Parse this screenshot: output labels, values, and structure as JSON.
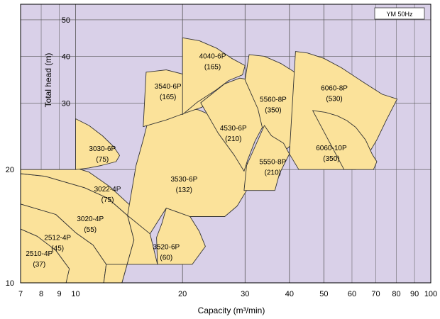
{
  "chart_data": {
    "type": "area",
    "legend": "YM 50Hz",
    "xlabel": "Capacity (m³/min)",
    "ylabel": "Total head (m)",
    "x_scale": "log",
    "y_scale": "log",
    "xlim": [
      7,
      100
    ],
    "ylim": [
      10,
      55
    ],
    "x_ticks": [
      7,
      8,
      9,
      10,
      20,
      30,
      40,
      50,
      60,
      70,
      80,
      90,
      100
    ],
    "y_ticks": [
      10,
      20,
      30,
      40,
      50
    ],
    "colors": {
      "background": "#d9d0e8",
      "region_fill": "#fbe29a",
      "outline": "#333333",
      "grid": "#555555"
    },
    "regions": [
      {
        "model": "2510-4P",
        "power": "(37)",
        "label_at": [
          7.9,
          11.8
        ],
        "outline": [
          [
            7.0,
            10.0
          ],
          [
            9.4,
            10.0
          ],
          [
            9.9,
            10.0
          ],
          [
            9.6,
            10.9
          ],
          [
            8.8,
            12.2
          ],
          [
            7.8,
            13.3
          ],
          [
            7.0,
            13.9
          ]
        ]
      },
      {
        "model": "2512-4P",
        "power": "(45)",
        "label_at": [
          8.9,
          13.0
        ],
        "outline": [
          [
            9.4,
            10.0
          ],
          [
            12.0,
            10.0
          ],
          [
            12.2,
            11.2
          ],
          [
            11.2,
            12.6
          ],
          [
            10.0,
            13.6
          ],
          [
            8.8,
            15.2
          ],
          [
            7.0,
            16.2
          ],
          [
            7.0,
            13.9
          ],
          [
            7.8,
            13.3
          ],
          [
            8.8,
            12.2
          ],
          [
            9.6,
            10.9
          ]
        ]
      },
      {
        "model": "3020-4P",
        "power": "(55)",
        "label_at": [
          11.0,
          14.6
        ],
        "outline": [
          [
            12.0,
            10.0
          ],
          [
            13.5,
            10.0
          ],
          [
            14.6,
            13.0
          ],
          [
            14.0,
            15.1
          ],
          [
            12.3,
            16.8
          ],
          [
            10.6,
            17.9
          ],
          [
            8.2,
            19.2
          ],
          [
            7.0,
            19.5
          ],
          [
            7.0,
            16.2
          ],
          [
            8.8,
            15.2
          ],
          [
            10.0,
            13.6
          ],
          [
            11.2,
            12.6
          ],
          [
            12.2,
            11.2
          ]
        ]
      },
      {
        "model": "3022-4P",
        "power": "(75)",
        "label_at": [
          12.3,
          17.5
        ],
        "outline": [
          [
            12.2,
            11.2
          ],
          [
            17.0,
            11.2
          ],
          [
            16.2,
            13.5
          ],
          [
            14.3,
            16.0
          ],
          [
            12.5,
            18.0
          ],
          [
            10.9,
            19.7
          ],
          [
            10.0,
            20.2
          ],
          [
            10.0,
            20.0
          ],
          [
            7.0,
            20.0
          ],
          [
            7.0,
            19.5
          ],
          [
            8.2,
            19.2
          ],
          [
            10.6,
            17.9
          ],
          [
            12.3,
            16.8
          ],
          [
            14.0,
            15.1
          ],
          [
            14.6,
            13.0
          ],
          [
            13.5,
            10.0
          ],
          [
            12.0,
            10.0
          ]
        ]
      },
      {
        "model": "3030-6P",
        "power": "(75)",
        "label_at": [
          11.9,
          22.4
        ],
        "outline": [
          [
            10.0,
            20.0
          ],
          [
            10.0,
            27.3
          ],
          [
            10.9,
            26.2
          ],
          [
            11.9,
            24.6
          ],
          [
            12.8,
            23.0
          ],
          [
            13.3,
            21.8
          ],
          [
            13.0,
            21.0
          ],
          [
            11.8,
            20.5
          ],
          [
            10.9,
            20.2
          ]
        ]
      },
      {
        "model": "3520-6P",
        "power": "(60)",
        "label_at": [
          18.0,
          12.3
        ],
        "outline": [
          [
            17.0,
            11.2
          ],
          [
            21.3,
            11.2
          ],
          [
            23.2,
            12.5
          ],
          [
            22.3,
            13.7
          ],
          [
            21.0,
            15.0
          ],
          [
            18.0,
            15.8
          ],
          [
            17.5,
            14.4
          ],
          [
            16.9,
            13.2
          ]
        ]
      },
      {
        "model": "3530-6P",
        "power": "(132)",
        "label_at": [
          20.2,
          18.6
        ],
        "outline": [
          [
            14.0,
            15.1
          ],
          [
            16.2,
            13.5
          ],
          [
            18.0,
            15.8
          ],
          [
            21.0,
            15.0
          ],
          [
            26.3,
            15.0
          ],
          [
            28.5,
            16.0
          ],
          [
            30.3,
            17.6
          ],
          [
            30.8,
            19.6
          ],
          [
            30.1,
            21.8
          ],
          [
            28.0,
            24.6
          ],
          [
            25.4,
            27.3
          ],
          [
            22.2,
            28.8
          ],
          [
            19.2,
            29.6
          ],
          [
            17.0,
            29.3
          ],
          [
            16.0,
            27.0
          ],
          [
            15.5,
            24.0
          ],
          [
            14.8,
            20.5
          ],
          [
            14.3,
            17.0
          ]
        ]
      },
      {
        "model": "3540-6P",
        "power": "(165)",
        "label_at": [
          18.2,
          32.8
        ],
        "outline": [
          [
            15.5,
            26.0
          ],
          [
            15.8,
            36.3
          ],
          [
            18.0,
            36.8
          ],
          [
            20.2,
            35.8
          ],
          [
            22.0,
            33.8
          ],
          [
            24.5,
            31.4
          ],
          [
            22.7,
            29.3
          ],
          [
            20.2,
            28.2
          ],
          [
            18.0,
            27.1
          ]
        ]
      },
      {
        "model": "4040-6P",
        "power": "(165)",
        "label_at": [
          24.3,
          39.5
        ],
        "outline": [
          [
            20.0,
            28.0
          ],
          [
            20.0,
            44.8
          ],
          [
            22.3,
            44.0
          ],
          [
            25.0,
            42.0
          ],
          [
            27.5,
            39.5
          ],
          [
            30.0,
            37.8
          ],
          [
            29.5,
            35.7
          ],
          [
            27.0,
            34.5
          ],
          [
            24.8,
            32.5
          ],
          [
            22.0,
            30.2
          ]
        ]
      },
      {
        "model": "4530-6P",
        "power": "(210)",
        "label_at": [
          27.8,
          25.4
        ],
        "outline": [
          [
            22.5,
            30.1
          ],
          [
            26.3,
            33.8
          ],
          [
            29.0,
            35.0
          ],
          [
            30.0,
            34.8
          ],
          [
            33.0,
            32.3
          ],
          [
            35.5,
            29.5
          ],
          [
            34.0,
            26.5
          ],
          [
            32.0,
            23.8
          ],
          [
            30.5,
            21.2
          ],
          [
            29.8,
            19.8
          ],
          [
            28.0,
            21.8
          ],
          [
            25.2,
            25.0
          ]
        ]
      },
      {
        "model": "5560-8P",
        "power": "(350)",
        "label_at": [
          36.0,
          30.3
        ],
        "outline": [
          [
            30.0,
            34.6
          ],
          [
            30.8,
            40.4
          ],
          [
            34.0,
            40.0
          ],
          [
            37.8,
            38.3
          ],
          [
            41.0,
            36.5
          ],
          [
            45.0,
            33.5
          ],
          [
            48.5,
            30.8
          ],
          [
            46.3,
            27.8
          ],
          [
            44.0,
            25.6
          ],
          [
            41.0,
            23.5
          ],
          [
            38.5,
            22.3
          ],
          [
            35.5,
            23.5
          ],
          [
            33.5,
            26.0
          ],
          [
            32.6,
            29.0
          ]
        ]
      },
      {
        "model": "5550-8P",
        "power": "(210)",
        "label_at": [
          35.9,
          20.7
        ],
        "outline": [
          [
            29.8,
            17.6
          ],
          [
            36.4,
            17.6
          ],
          [
            37.5,
            19.5
          ],
          [
            38.8,
            20.8
          ],
          [
            40.0,
            22.0
          ],
          [
            38.5,
            23.5
          ],
          [
            35.6,
            24.6
          ],
          [
            34.0,
            26.2
          ],
          [
            32.0,
            23.0
          ],
          [
            30.3,
            20.5
          ]
        ]
      },
      {
        "model": "6060-8P",
        "power": "(530)",
        "label_at": [
          53.5,
          32.5
        ],
        "outline": [
          [
            40.0,
            22.0
          ],
          [
            41.6,
            41.2
          ],
          [
            45.0,
            40.8
          ],
          [
            50.0,
            39.5
          ],
          [
            56.0,
            37.3
          ],
          [
            65.0,
            34.0
          ],
          [
            73.0,
            31.7
          ],
          [
            80.4,
            30.8
          ],
          [
            75.0,
            27.1
          ],
          [
            70.5,
            24.0
          ],
          [
            66.0,
            21.6
          ],
          [
            61.5,
            20.0
          ],
          [
            57.0,
            20.0
          ],
          [
            48.0,
            20.0
          ],
          [
            42.5,
            20.0
          ]
        ]
      },
      {
        "model": "6060-10P",
        "power": "(350)",
        "label_at": [
          52.5,
          22.5
        ],
        "outline": [
          [
            46.5,
            28.7
          ],
          [
            50.5,
            28.4
          ],
          [
            54.5,
            27.8
          ],
          [
            58.0,
            27.0
          ],
          [
            61.5,
            25.9
          ],
          [
            65.5,
            24.0
          ],
          [
            68.5,
            21.9
          ],
          [
            70.5,
            21.0
          ],
          [
            69.0,
            20.0
          ],
          [
            57.0,
            20.0
          ]
        ]
      }
    ]
  }
}
